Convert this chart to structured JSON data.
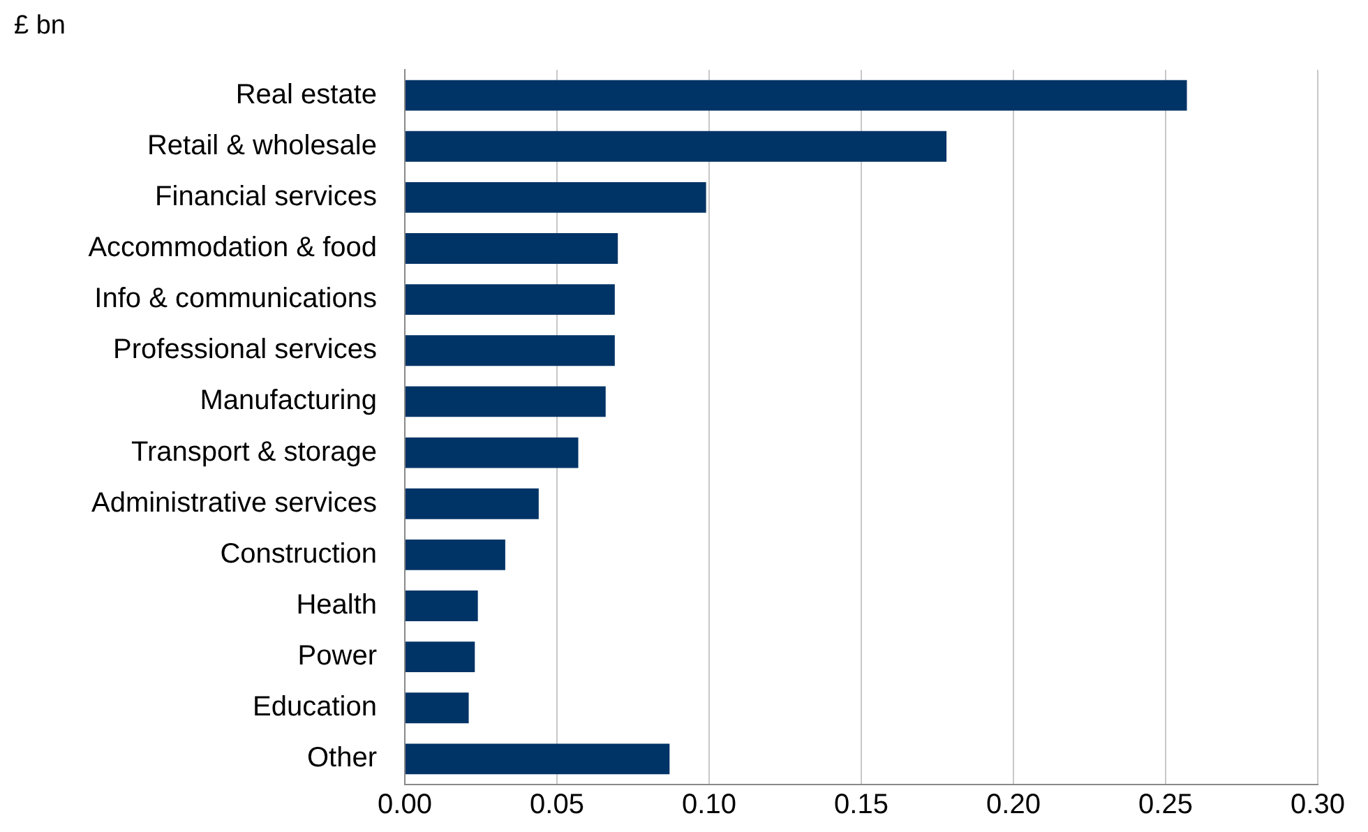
{
  "chart_data": {
    "type": "bar",
    "orientation": "horizontal",
    "ylabel": "£ bn",
    "categories": [
      "Real estate",
      "Retail & wholesale",
      "Financial services",
      "Accommodation & food",
      "Info & communications",
      "Professional services",
      "Manufacturing",
      "Transport & storage",
      "Administrative services",
      "Construction",
      "Health",
      "Power",
      "Education",
      "Other"
    ],
    "values": [
      0.257,
      0.178,
      0.099,
      0.07,
      0.069,
      0.069,
      0.066,
      0.057,
      0.044,
      0.033,
      0.024,
      0.023,
      0.021,
      0.087
    ],
    "color": "#003366",
    "xlim": [
      0,
      0.3
    ],
    "xticks": [
      {
        "value": 0,
        "label": "0.00"
      },
      {
        "value": 0.05,
        "label": "0.05"
      },
      {
        "value": 0.1,
        "label": "0.10"
      },
      {
        "value": 0.15,
        "label": "0.15"
      },
      {
        "value": 0.2,
        "label": "0.20"
      },
      {
        "value": 0.25,
        "label": "0.25"
      },
      {
        "value": 0.3,
        "label": "0.30"
      }
    ],
    "grid": "x"
  }
}
